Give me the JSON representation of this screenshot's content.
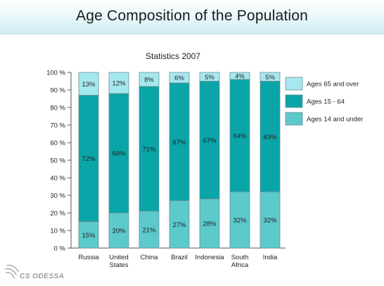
{
  "page": {
    "title": "Age Composition of the Population",
    "logo_text": "CS ODESSA"
  },
  "colors": {
    "ages_65_over": "#a6e8f0",
    "ages_15_64": "#0aa5a8",
    "ages_14_under": "#5cc9cb",
    "bar_border": "#6f8f93",
    "axis": "#555555"
  },
  "chart_data": {
    "type": "bar",
    "stacked": true,
    "percent": true,
    "title": "Statistics 2007",
    "xlabel": "",
    "ylabel": "",
    "ylim": [
      0,
      100
    ],
    "yticks": [
      "0 %",
      "10 %",
      "20 %",
      "30 %",
      "40 %",
      "50 %",
      "60 %",
      "70 %",
      "80 %",
      "90 %",
      "100 %"
    ],
    "categories": [
      [
        "Russia"
      ],
      [
        "United",
        "States"
      ],
      [
        "China"
      ],
      [
        "Brazil"
      ],
      [
        "Indonesia"
      ],
      [
        "South",
        "Africa"
      ],
      [
        "India"
      ]
    ],
    "series": [
      {
        "name": "Ages 14 and under",
        "key": "ages_14_under",
        "values": [
          15,
          20,
          21,
          27,
          28,
          32,
          32
        ],
        "labels": [
          "15%",
          "20%",
          "21%",
          "27%",
          "28%",
          "32%",
          "32%"
        ]
      },
      {
        "name": "Ages 15 - 64",
        "key": "ages_15_64",
        "values": [
          72,
          68,
          71,
          67,
          67,
          64,
          63
        ],
        "labels": [
          "72%",
          "68%",
          "71%",
          "67%",
          "67%",
          "64%",
          "63%"
        ]
      },
      {
        "name": "Ages 65 and over",
        "key": "ages_65_over",
        "values": [
          13,
          12,
          8,
          6,
          5,
          4,
          5
        ],
        "labels": [
          "13%",
          "12%",
          "8%",
          "6%",
          "5%",
          "4%",
          "5%"
        ]
      }
    ],
    "legend": {
      "placement": "right",
      "order": [
        "Ages 65 and over",
        "Ages 15 - 64",
        "Ages 14 and under"
      ]
    },
    "grid": false
  }
}
